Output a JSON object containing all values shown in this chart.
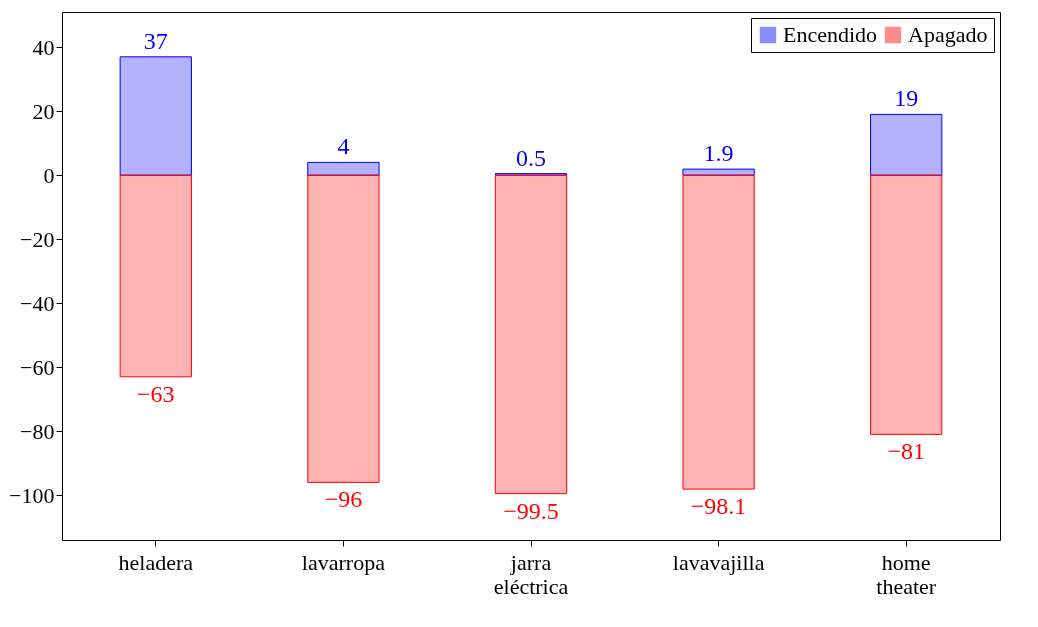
{
  "chart_data": {
    "type": "bar",
    "stacked": true,
    "categories": [
      "heladera",
      "lavarropa",
      "jarra eléctrica",
      "lavavajilla",
      "home theater"
    ],
    "series": [
      {
        "name": "Encendido",
        "color": "#0000ff",
        "values": [
          37,
          4,
          0.5,
          1.9,
          19
        ]
      },
      {
        "name": "Apagado",
        "color": "#ff0000",
        "values": [
          -63,
          -96,
          -99.5,
          -98.1,
          -81
        ]
      }
    ],
    "ylim": [
      -114,
      51
    ],
    "yticks": [
      -100,
      -80,
      -60,
      -40,
      -20,
      0,
      20,
      40
    ],
    "grid": false,
    "legend": "top right",
    "data_labels": true
  }
}
